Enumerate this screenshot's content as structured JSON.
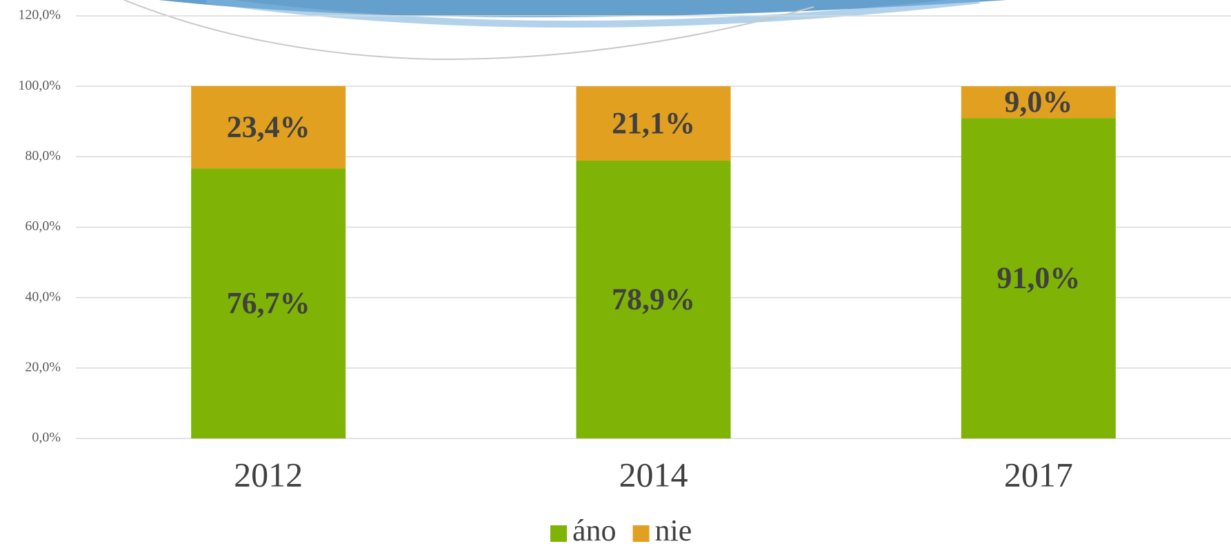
{
  "chart_data": {
    "type": "bar",
    "stacked": true,
    "categories": [
      "2012",
      "2014",
      "2017"
    ],
    "series": [
      {
        "name": "áno",
        "color": "#7fb406",
        "values": [
          76.7,
          78.9,
          91.0
        ],
        "value_labels": [
          "76,7%",
          "78,9%",
          "91,0%"
        ]
      },
      {
        "name": "nie",
        "color": "#e2a020",
        "values": [
          23.4,
          21.1,
          9.0
        ],
        "value_labels": [
          "23,4%",
          "21,1%",
          "9,0%"
        ]
      }
    ],
    "ylim": [
      0,
      120
    ],
    "yticks": [
      {
        "value": 0,
        "label": "0,0%"
      },
      {
        "value": 20,
        "label": "20,0%"
      },
      {
        "value": 40,
        "label": "40,0%"
      },
      {
        "value": 60,
        "label": "60,0%"
      },
      {
        "value": 80,
        "label": "80,0%"
      },
      {
        "value": 100,
        "label": "100,0%"
      },
      {
        "value": 120,
        "label": "120,0%"
      }
    ],
    "grid": true,
    "legend": "bottom"
  }
}
